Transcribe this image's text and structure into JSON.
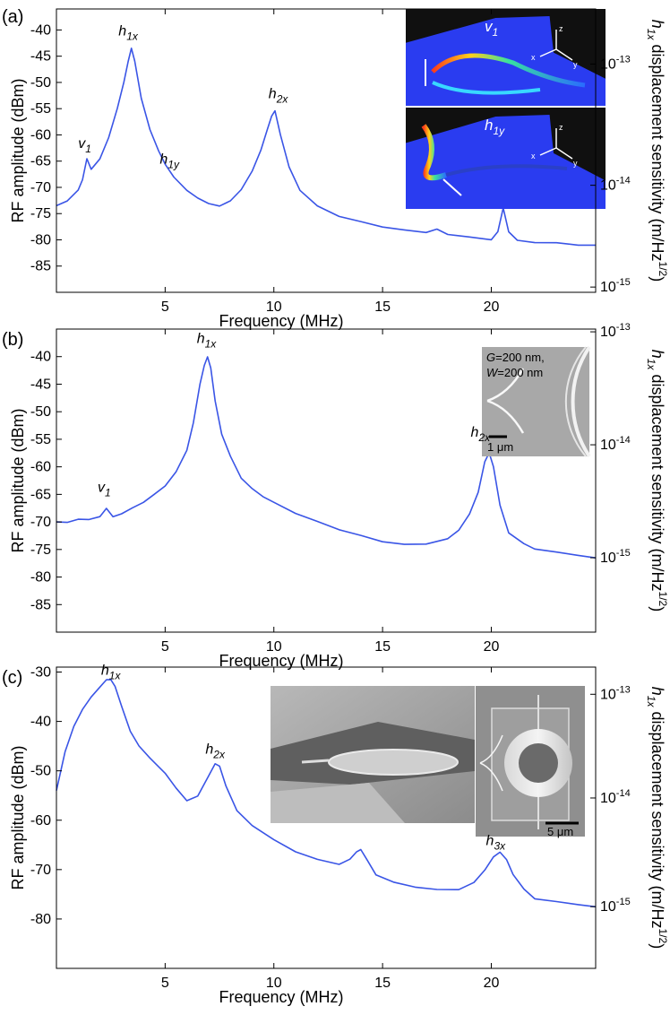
{
  "figure": {
    "right_axis_label": "displacement sensitivity (m/Hz",
    "right_axis_var": "h",
    "right_axis_var_sub": "1x",
    "right_axis_sup": "1/2",
    "right_axis_close": ")"
  },
  "colors": {
    "trace": "#3a55e6",
    "axis": "#000000",
    "inset_blue": "#2a3cf0",
    "sem_gray": "#9a9a9a"
  },
  "chart_data": [
    {
      "panel": "(a)",
      "type": "line",
      "xlabel": "Frequency (MHz)",
      "ylabel": "RF amplitude (dBm)",
      "xlim": [
        0,
        24.8
      ],
      "ylim": [
        -90,
        -36
      ],
      "x_ticks": [
        5,
        10,
        15,
        20
      ],
      "y_ticks": [
        -40,
        -45,
        -50,
        -55,
        -60,
        -65,
        -70,
        -75,
        -80,
        -85
      ],
      "right_ticks": [
        {
          "base": "10",
          "exp": "-13",
          "y": -46.5
        },
        {
          "base": "10",
          "exp": "-14",
          "y": -69.6
        },
        {
          "base": "10",
          "exp": "-15",
          "y": -89.0
        }
      ],
      "peaks": [
        {
          "label": "v",
          "sub": "1",
          "x": 1.3,
          "y": -62.5
        },
        {
          "label": "h",
          "sub": "1x",
          "x": 3.3,
          "y": -41.0
        },
        {
          "label": "h",
          "sub": "1y",
          "x": 5.2,
          "y": -65.5
        },
        {
          "label": "h",
          "sub": "2x",
          "x": 10.2,
          "y": -53.0
        }
      ],
      "trace": {
        "x": [
          0,
          0.5,
          1,
          1.2,
          1.4,
          1.6,
          2,
          2.4,
          2.8,
          3.1,
          3.3,
          3.45,
          3.6,
          3.9,
          4.3,
          4.7,
          5.0,
          5.4,
          6,
          6.5,
          7,
          7.5,
          8,
          8.5,
          9,
          9.4,
          9.7,
          9.9,
          10.05,
          10.3,
          10.7,
          11.2,
          12,
          13,
          14,
          15,
          16,
          17,
          17.5,
          18,
          19,
          20,
          20.3,
          20.55,
          20.8,
          21.2,
          22,
          23,
          24,
          24.8
        ],
        "y": [
          -73.5,
          -72.5,
          -70.5,
          -68.5,
          -64.5,
          -66.5,
          -64.5,
          -60.5,
          -55,
          -50,
          -46,
          -43.5,
          -46,
          -53,
          -59,
          -63,
          -65.5,
          -68,
          -70.5,
          -72,
          -73,
          -73.5,
          -72.5,
          -70.5,
          -67,
          -63,
          -59,
          -56.5,
          -55.5,
          -60,
          -66,
          -70.5,
          -73.5,
          -75.5,
          -76.5,
          -77.5,
          -78,
          -78.5,
          -78,
          -79,
          -79.5,
          -80,
          -78.5,
          -74,
          -78.5,
          -80,
          -80.5,
          -80.5,
          -81,
          -81
        ]
      },
      "insets": [
        {
          "type": "simulation",
          "mode": "v",
          "mode_sub": "1",
          "axes": [
            "z",
            "x",
            "y"
          ]
        },
        {
          "type": "simulation",
          "mode": "h",
          "mode_sub": "1y",
          "axes": [
            "z",
            "x",
            "y"
          ]
        }
      ]
    },
    {
      "panel": "(b)",
      "type": "line",
      "xlabel": "Frequency (MHz)",
      "ylabel": "RF amplitude (dBm)",
      "xlim": [
        0,
        24.8
      ],
      "ylim": [
        -90,
        -35
      ],
      "x_ticks": [
        5,
        10,
        15,
        20
      ],
      "y_ticks": [
        -40,
        -45,
        -50,
        -55,
        -60,
        -65,
        -70,
        -75,
        -80,
        -85
      ],
      "right_ticks": [
        {
          "base": "10",
          "exp": "-13",
          "y": -35.5
        },
        {
          "base": "10",
          "exp": "-14",
          "y": -56.0
        },
        {
          "base": "10",
          "exp": "-15",
          "y": -76.5
        }
      ],
      "peaks": [
        {
          "label": "v",
          "sub": "1",
          "x": 2.2,
          "y": -64.5
        },
        {
          "label": "h",
          "sub": "1x",
          "x": 6.9,
          "y": -37.5
        },
        {
          "label": "h",
          "sub": "2x",
          "x": 19.5,
          "y": -54.5
        }
      ],
      "trace": {
        "x": [
          0,
          0.5,
          1,
          1.5,
          2,
          2.3,
          2.6,
          3,
          3.5,
          4,
          4.5,
          5,
          5.5,
          6,
          6.3,
          6.6,
          6.8,
          6.95,
          7.1,
          7.3,
          7.6,
          8,
          8.5,
          9,
          9.5,
          10,
          11,
          12,
          13,
          14,
          15,
          16,
          17,
          18,
          18.5,
          19,
          19.4,
          19.7,
          19.9,
          20.1,
          20.4,
          20.8,
          21.5,
          22,
          23,
          24,
          24.8
        ],
        "y": [
          -70,
          -70,
          -69.5,
          -69.5,
          -69,
          -67.5,
          -69,
          -68.5,
          -67.5,
          -66.5,
          -65,
          -63.5,
          -61,
          -57,
          -52,
          -45,
          -41.5,
          -40,
          -42,
          -48,
          -54,
          -58,
          -62,
          -64,
          -65.5,
          -66.5,
          -68.5,
          -70,
          -71.5,
          -72.5,
          -73.5,
          -74,
          -74,
          -73,
          -71.5,
          -68.5,
          -64.5,
          -59,
          -57.5,
          -60,
          -67,
          -72,
          -74,
          -75,
          -75.5,
          -76,
          -76.5
        ]
      },
      "insets": [
        {
          "type": "sem",
          "text_line1": "=200 nm,",
          "var1": "G",
          "text_line2": "=200 nm",
          "var2": "W",
          "scale": "1 μm"
        }
      ]
    },
    {
      "panel": "(c)",
      "type": "line",
      "xlabel": "Frequency (MHz)",
      "ylabel": "RF amplitude (dBm)",
      "xlim": [
        0,
        24.8
      ],
      "ylim": [
        -90,
        -29
      ],
      "x_ticks": [
        5,
        10,
        15,
        20
      ],
      "y_ticks": [
        -30,
        -40,
        -50,
        -60,
        -70,
        -80
      ],
      "right_ticks": [
        {
          "base": "10",
          "exp": "-13",
          "y": -34.5
        },
        {
          "base": "10",
          "exp": "-14",
          "y": -55.5
        },
        {
          "base": "10",
          "exp": "-15",
          "y": -77.5
        }
      ],
      "peaks": [
        {
          "label": "h",
          "sub": "1x",
          "x": 2.5,
          "y": -30.5
        },
        {
          "label": "h",
          "sub": "2x",
          "x": 7.3,
          "y": -46.5
        },
        {
          "label": "h",
          "sub": "3x",
          "x": 20.2,
          "y": -65.0
        }
      ],
      "trace": {
        "x": [
          0,
          0.4,
          0.8,
          1.2,
          1.6,
          2,
          2.3,
          2.5,
          2.7,
          3,
          3.4,
          3.8,
          4.3,
          5,
          5.5,
          6,
          6.5,
          7,
          7.3,
          7.5,
          7.8,
          8.3,
          9,
          10,
          11,
          12,
          13,
          13.5,
          13.8,
          14,
          14.3,
          14.7,
          15.5,
          16.5,
          17.5,
          18.5,
          19.2,
          19.7,
          20.1,
          20.4,
          20.7,
          21,
          21.5,
          22,
          23,
          24,
          24.8
        ],
        "y": [
          -54,
          -46,
          -41,
          -37.5,
          -35,
          -33,
          -31.5,
          -31.5,
          -33,
          -37,
          -42,
          -45,
          -47.5,
          -50.5,
          -53.5,
          -56,
          -55,
          -51,
          -48.5,
          -49,
          -53,
          -58,
          -61,
          -64,
          -66.5,
          -68,
          -69,
          -68,
          -66.5,
          -66,
          -68,
          -71,
          -72.5,
          -73.5,
          -74,
          -74,
          -72.5,
          -70,
          -67.5,
          -66.5,
          -68,
          -71,
          -74,
          -76,
          -76.5,
          -77,
          -77.5
        ]
      },
      "insets": [
        {
          "type": "sem",
          "view": "tilted disk"
        },
        {
          "type": "sem",
          "view": "top view",
          "scale": "5 μm"
        }
      ]
    }
  ]
}
